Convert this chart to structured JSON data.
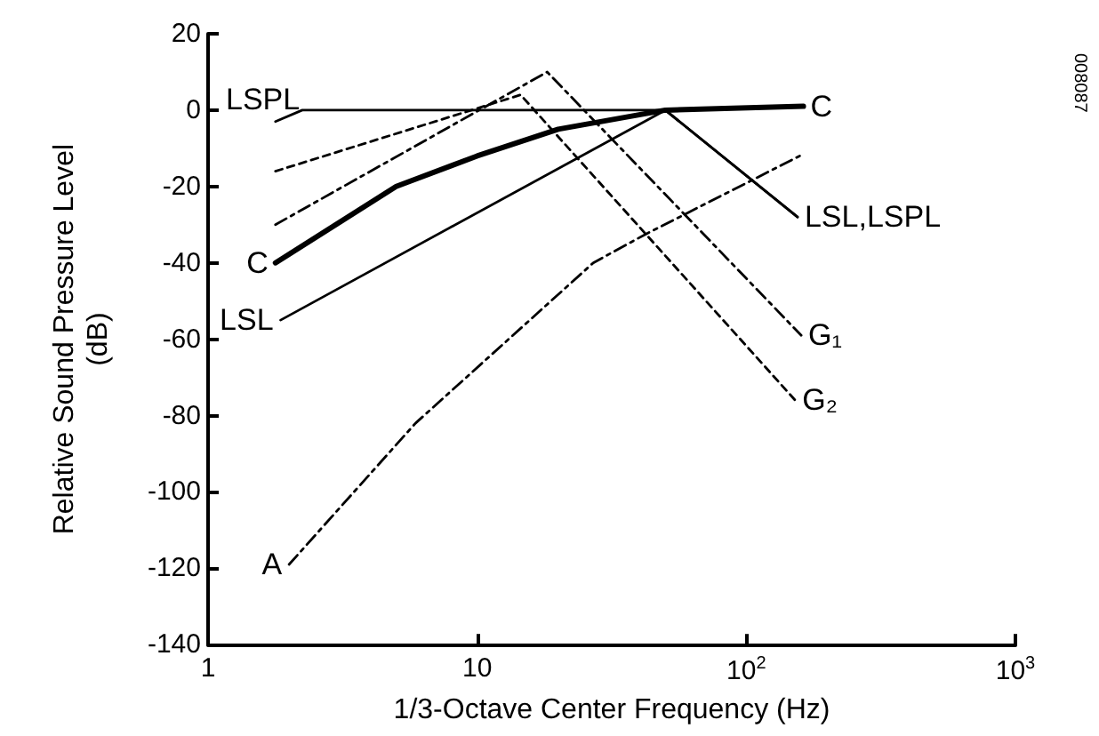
{
  "chart_data": {
    "type": "line",
    "xlabel": "1/3-Octave Center Frequency (Hz)",
    "ylabel": "Relative Sound Pressure Level\n(dB)",
    "log": "x",
    "marker": "none",
    "grid": false,
    "xlim": [
      1,
      1000
    ],
    "xticks": [
      1,
      10,
      {
        "value": 100,
        "label": "10$^{2}$"
      },
      {
        "value": 1000,
        "label": "10$^{3}$"
      }
    ],
    "ylim": [
      -140,
      20
    ],
    "yticks": [
      -140,
      -120,
      -100,
      -80,
      -60,
      -40,
      -20,
      0,
      20
    ],
    "series": [
      {
        "color": "#000000",
        "line_style": "solid",
        "x": [
          1.78,
          2.24,
          50,
          155
        ],
        "values": [
          -3,
          0,
          0,
          -28
        ]
      },
      {
        "color": "#000000",
        "line_style": "solid",
        "x": [
          1.78,
          5,
          10,
          20,
          50,
          163
        ],
        "values": [
          -40,
          -20,
          -12,
          -5,
          0,
          1
        ]
      },
      {
        "color": "#000000",
        "line_style": "solid",
        "x": [
          1.86,
          50,
          155
        ],
        "values": [
          -55,
          0,
          -28
        ]
      },
      {
        "color": "#000000",
        "line_style": "dashed",
        "x": [
          1.78,
          18.2,
          160
        ],
        "values": [
          -30,
          10,
          -59
        ]
      },
      {
        "color": "#000000",
        "line_style": "dotted",
        "x": [
          1.78,
          14.5,
          152
        ],
        "values": [
          -16,
          4,
          -76
        ]
      },
      {
        "color": "#000000",
        "line_style": "dashed",
        "x": [
          2,
          5.9,
          27,
          42,
          163
        ],
        "values": [
          -119,
          -82,
          -40,
          -32.6,
          -11.5
        ]
      }
    ],
    "annotations": [
      {
        "text": "LSPL",
        "x": 1.78,
        "y": -3
      },
      {
        "text": "C",
        "x": 1.78,
        "y": -40
      },
      {
        "text": "LSL",
        "x": 1.86,
        "y": -55
      },
      {
        "text": "A",
        "x": 2,
        "y": -119
      },
      {
        "text": "C",
        "x": 163,
        "y": 1
      },
      {
        "text": "LSL,LSPL",
        "x": 155,
        "y": -28
      },
      {
        "text": "G₁",
        "x": 160,
        "y": -59
      },
      {
        "text": "G₂",
        "x": 152,
        "y": -76
      },
      "008087"
    ]
  }
}
